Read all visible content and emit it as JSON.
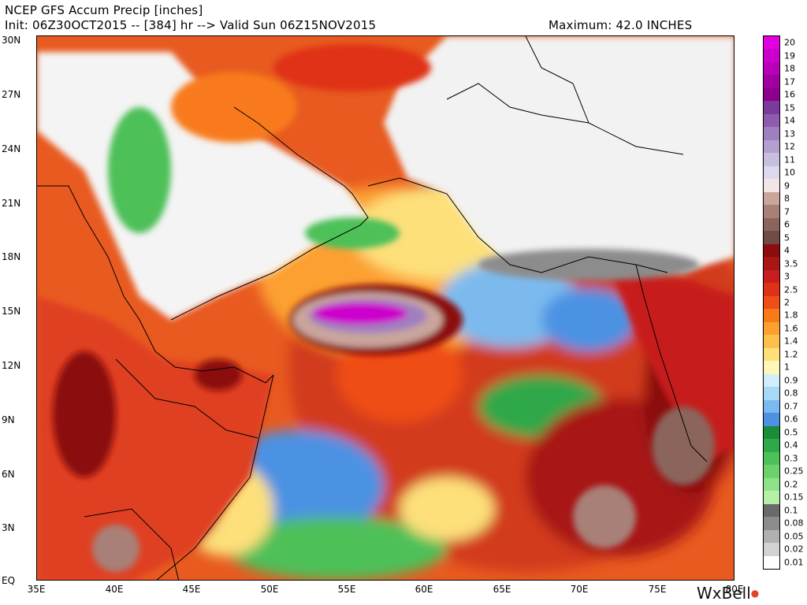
{
  "header": {
    "title": "NCEP GFS Accum Precip [inches]",
    "init": "Init: 06Z30OCT2015 -- [384] hr --> Valid Sun 06Z15NOV2015",
    "maximum": "Maximum: 42.0 INCHES"
  },
  "axes": {
    "lat_labels": [
      "30N",
      "27N",
      "24N",
      "21N",
      "18N",
      "15N",
      "12N",
      "9N",
      "6N",
      "3N",
      "EQ"
    ],
    "lon_labels": [
      "35E",
      "40E",
      "45E",
      "50E",
      "55E",
      "60E",
      "65E",
      "70E",
      "75E",
      "80E"
    ]
  },
  "legend": {
    "levels": [
      "20",
      "19",
      "18",
      "17",
      "16",
      "15",
      "14",
      "13",
      "12",
      "11",
      "10",
      "9",
      "8",
      "7",
      "6",
      "5",
      "4",
      "3.5",
      "3",
      "2.5",
      "2",
      "1.8",
      "1.6",
      "1.4",
      "1.2",
      "1",
      "0.9",
      "0.8",
      "0.7",
      "0.6",
      "0.5",
      "0.4",
      "0.3",
      "0.25",
      "0.2",
      "0.15",
      "0.1",
      "0.08",
      "0.05",
      "0.02",
      "0.01"
    ],
    "colors": [
      "#e000e0",
      "#cc00cc",
      "#b800b8",
      "#a000a0",
      "#8c008c",
      "#7a3b9c",
      "#8d5cad",
      "#a07fbf",
      "#b49fd0",
      "#c8bfe0",
      "#dcd8ee",
      "#f1e6e3",
      "#c9a59c",
      "#a88078",
      "#8b655c",
      "#6e4b43",
      "#8b0d0d",
      "#a81616",
      "#c71f1f",
      "#e03018",
      "#f04e18",
      "#f87a1a",
      "#fca030",
      "#fdc04a",
      "#fde07a",
      "#fff6b8",
      "#cfeefa",
      "#a6d8f7",
      "#7bbaee",
      "#4b92e3",
      "#1a8c3a",
      "#2ea848",
      "#4dc058",
      "#6dd26b",
      "#8ee288",
      "#b4f0a8",
      "#6a6a6a",
      "#8c8c8c",
      "#b0b0b0",
      "#d2d2d2",
      "#ffffff"
    ]
  },
  "watermark": {
    "text": "WxBell"
  }
}
